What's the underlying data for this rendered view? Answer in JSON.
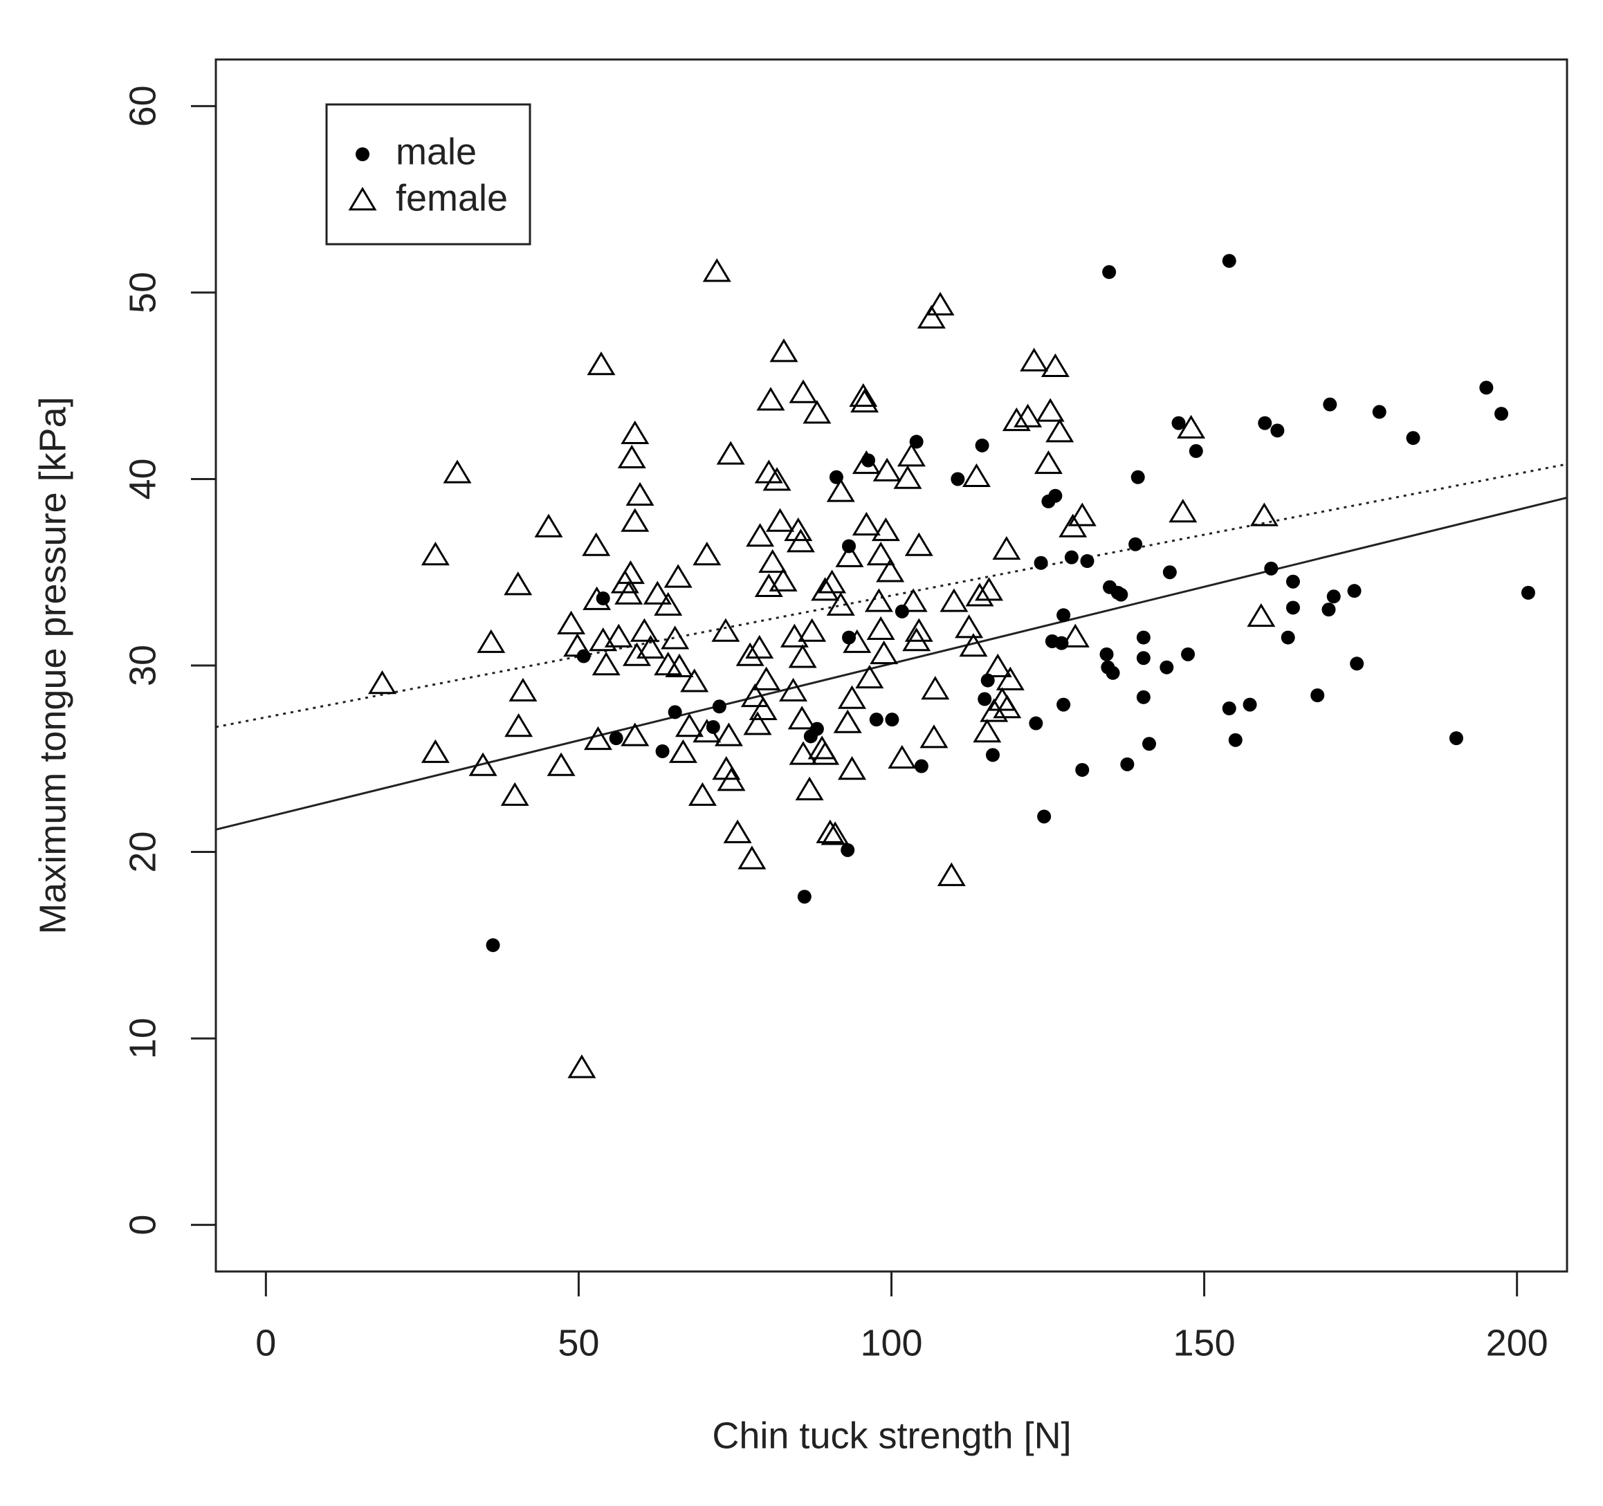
{
  "chart_data": {
    "type": "scatter",
    "x_label": "Chin tuck strength [N]",
    "y_label": "Maximum tongue pressure [kPa]",
    "xlim": [
      -8,
      208
    ],
    "ylim": [
      -2.5,
      62.5
    ],
    "xticks": [
      0,
      50,
      100,
      150,
      200
    ],
    "yticks": [
      0,
      10,
      20,
      30,
      40,
      50,
      60
    ],
    "legend": "top-left",
    "series": [
      {
        "name": "male",
        "marker": "circle",
        "color": "#000000",
        "x": [
          53.9,
          50.8,
          56.0,
          36.3,
          63.4,
          65.4,
          72.5,
          71.5,
          86.1,
          87.1,
          88.1,
          93.2,
          93.2,
          93.0,
          91.2,
          96.3,
          97.6,
          100.1,
          101.7,
          104.0,
          104.8,
          110.6,
          114.5,
          115.4,
          114.9,
          116.2,
          123.1,
          123.9,
          124.4,
          125.1,
          126.2,
          125.7,
          127.2,
          127.5,
          127.5,
          128.8,
          131.3,
          130.5,
          134.8,
          134.4,
          134.6,
          135.4,
          134.9,
          136.2,
          136.7,
          137.7,
          139.4,
          139.0,
          140.3,
          140.3,
          140.3,
          141.2,
          144.0,
          144.5,
          145.9,
          147.4,
          148.7,
          154.0,
          154.0,
          155.0,
          157.3,
          159.7,
          161.7,
          160.7,
          163.4,
          164.2,
          164.2,
          168.1,
          170.1,
          169.9,
          170.7,
          174.0,
          174.4,
          178.0,
          183.4,
          190.3,
          195.1,
          197.5,
          201.8
        ],
        "values": [
          33.6,
          30.5,
          26.1,
          15.0,
          25.4,
          27.5,
          27.8,
          26.7,
          17.6,
          26.2,
          26.6,
          36.4,
          31.5,
          20.1,
          40.1,
          41.0,
          27.1,
          27.1,
          32.9,
          42.0,
          24.6,
          40.0,
          41.8,
          29.2,
          28.2,
          25.2,
          26.9,
          35.5,
          21.9,
          38.8,
          39.1,
          31.3,
          31.2,
          32.7,
          27.9,
          35.8,
          35.6,
          24.4,
          51.1,
          30.6,
          29.9,
          29.6,
          34.2,
          33.9,
          33.8,
          24.7,
          40.1,
          36.5,
          31.5,
          30.4,
          28.3,
          25.8,
          29.9,
          35.0,
          43.0,
          30.6,
          41.5,
          51.7,
          27.7,
          26.0,
          27.9,
          43.0,
          42.6,
          35.2,
          31.5,
          34.5,
          33.1,
          28.4,
          44.0,
          33.0,
          33.7,
          34.0,
          30.1,
          43.6,
          42.2,
          26.1,
          44.9,
          43.5,
          33.9
        ]
      },
      {
        "name": "female",
        "marker": "triangle",
        "color": "#000000",
        "x": [
          18.6,
          27.1,
          27.1,
          30.6,
          34.7,
          36.0,
          39.8,
          40.3,
          40.4,
          41.1,
          45.2,
          47.2,
          48.8,
          49.8,
          50.5,
          52.8,
          52.9,
          53.1,
          53.6,
          53.9,
          54.4,
          56.4,
          57.4,
          58.0,
          58.3,
          58.5,
          59.0,
          59.0,
          59.0,
          59.3,
          59.8,
          60.5,
          61.5,
          62.6,
          64.3,
          64.3,
          65.4,
          65.9,
          66.1,
          66.7,
          67.7,
          68.5,
          69.8,
          70.5,
          70.5,
          72.1,
          73.5,
          73.6,
          74.0,
          74.3,
          74.4,
          75.4,
          77.4,
          77.7,
          78.2,
          78.6,
          78.9,
          79.0,
          79.5,
          80.0,
          80.4,
          80.4,
          80.7,
          81.0,
          81.7,
          82.2,
          82.7,
          82.8,
          84.3,
          84.5,
          85.1,
          85.5,
          85.7,
          85.8,
          85.9,
          85.9,
          86.9,
          87.3,
          88.1,
          88.9,
          89.4,
          89.4,
          90.2,
          90.5,
          91.0,
          91.9,
          91.9,
          93.0,
          93.3,
          93.7,
          93.7,
          94.5,
          95.5,
          95.7,
          96.0,
          96.0,
          96.5,
          98.0,
          98.3,
          98.3,
          98.8,
          99.1,
          99.3,
          99.8,
          101.7,
          102.6,
          103.2,
          103.5,
          104.0,
          104.4,
          104.4,
          106.4,
          107.8,
          107.0,
          106.8,
          109.6,
          110.0,
          112.4,
          113.1,
          113.6,
          114.1,
          115.6,
          115.3,
          116.4,
          117.0,
          117.7,
          118.4,
          118.5,
          119.0,
          120.0,
          121.8,
          122.8,
          125.1,
          125.4,
          126.2,
          126.9,
          129.0,
          129.4,
          130.5,
          146.6,
          147.9,
          159.1,
          159.6
        ],
        "values": [
          29.0,
          35.9,
          25.3,
          40.3,
          24.6,
          31.2,
          23.0,
          34.3,
          26.7,
          28.6,
          37.4,
          24.6,
          32.2,
          31.0,
          8.4,
          36.4,
          33.5,
          26.0,
          46.1,
          31.3,
          30.0,
          31.5,
          34.4,
          33.8,
          34.9,
          41.1,
          42.4,
          37.7,
          26.2,
          30.5,
          39.1,
          31.8,
          30.9,
          33.8,
          33.2,
          30.0,
          31.4,
          34.7,
          29.9,
          25.3,
          26.7,
          29.1,
          23.0,
          35.9,
          26.4,
          51.1,
          31.8,
          24.4,
          26.2,
          41.3,
          23.8,
          21.0,
          30.5,
          19.6,
          28.3,
          26.8,
          30.9,
          36.9,
          27.6,
          29.2,
          34.2,
          40.3,
          44.2,
          35.5,
          39.9,
          37.7,
          34.5,
          46.8,
          28.6,
          31.5,
          37.2,
          36.6,
          27.1,
          30.4,
          44.6,
          25.2,
          23.3,
          31.8,
          43.5,
          25.5,
          25.2,
          34.0,
          21.0,
          34.4,
          20.9,
          39.3,
          33.2,
          26.9,
          35.8,
          24.4,
          28.2,
          31.2,
          44.4,
          44.1,
          40.8,
          37.5,
          29.3,
          33.4,
          31.9,
          35.9,
          30.6,
          37.2,
          40.4,
          35.0,
          25.0,
          40.0,
          41.2,
          33.4,
          31.3,
          31.8,
          36.4,
          48.6,
          49.3,
          28.7,
          26.1,
          18.7,
          33.4,
          32.0,
          31.0,
          40.1,
          33.7,
          34.0,
          26.4,
          27.5,
          29.9,
          28.1,
          36.2,
          27.7,
          29.2,
          43.1,
          43.3,
          46.3,
          40.8,
          43.6,
          46.0,
          42.5,
          37.4,
          31.5,
          38.0,
          38.2,
          42.7,
          32.6,
          38.0
        ]
      }
    ],
    "fits": [
      {
        "style": "solid",
        "x": [
          -8,
          208
        ],
        "values": [
          21.2,
          39.0
        ]
      },
      {
        "style": "dotted",
        "x": [
          -8,
          208
        ],
        "values": [
          26.7,
          40.8
        ]
      }
    ]
  }
}
